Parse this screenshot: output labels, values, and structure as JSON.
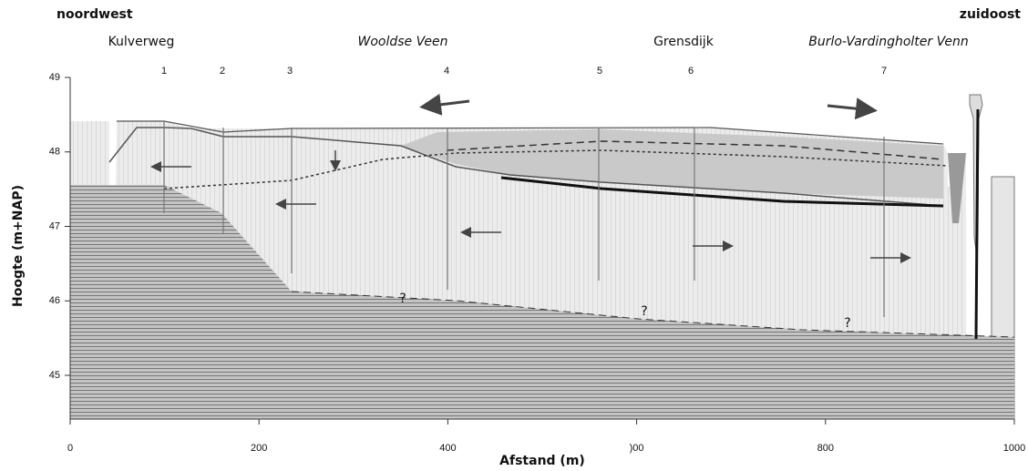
{
  "header": {
    "left": "noordwest",
    "right": "zuidoost"
  },
  "places": [
    "Kulverweg",
    "Wooldse Veen",
    "Grensdijk",
    "Burlo-Vardingholter Venn"
  ],
  "wells": [
    "1",
    "2",
    "3",
    "4",
    "5",
    "6",
    "7"
  ],
  "axes": {
    "y_label": "Hoogte (m+NAP)",
    "x_label": "Afstand (m)",
    "yticks": [
      45,
      46,
      47,
      48,
      49
    ],
    "xticks": [
      0,
      200,
      400,
      {
        "value": 600,
        "label": ")00"
      },
      800,
      1000
    ]
  },
  "unknowns": [
    "?",
    "?",
    "?"
  ]
}
